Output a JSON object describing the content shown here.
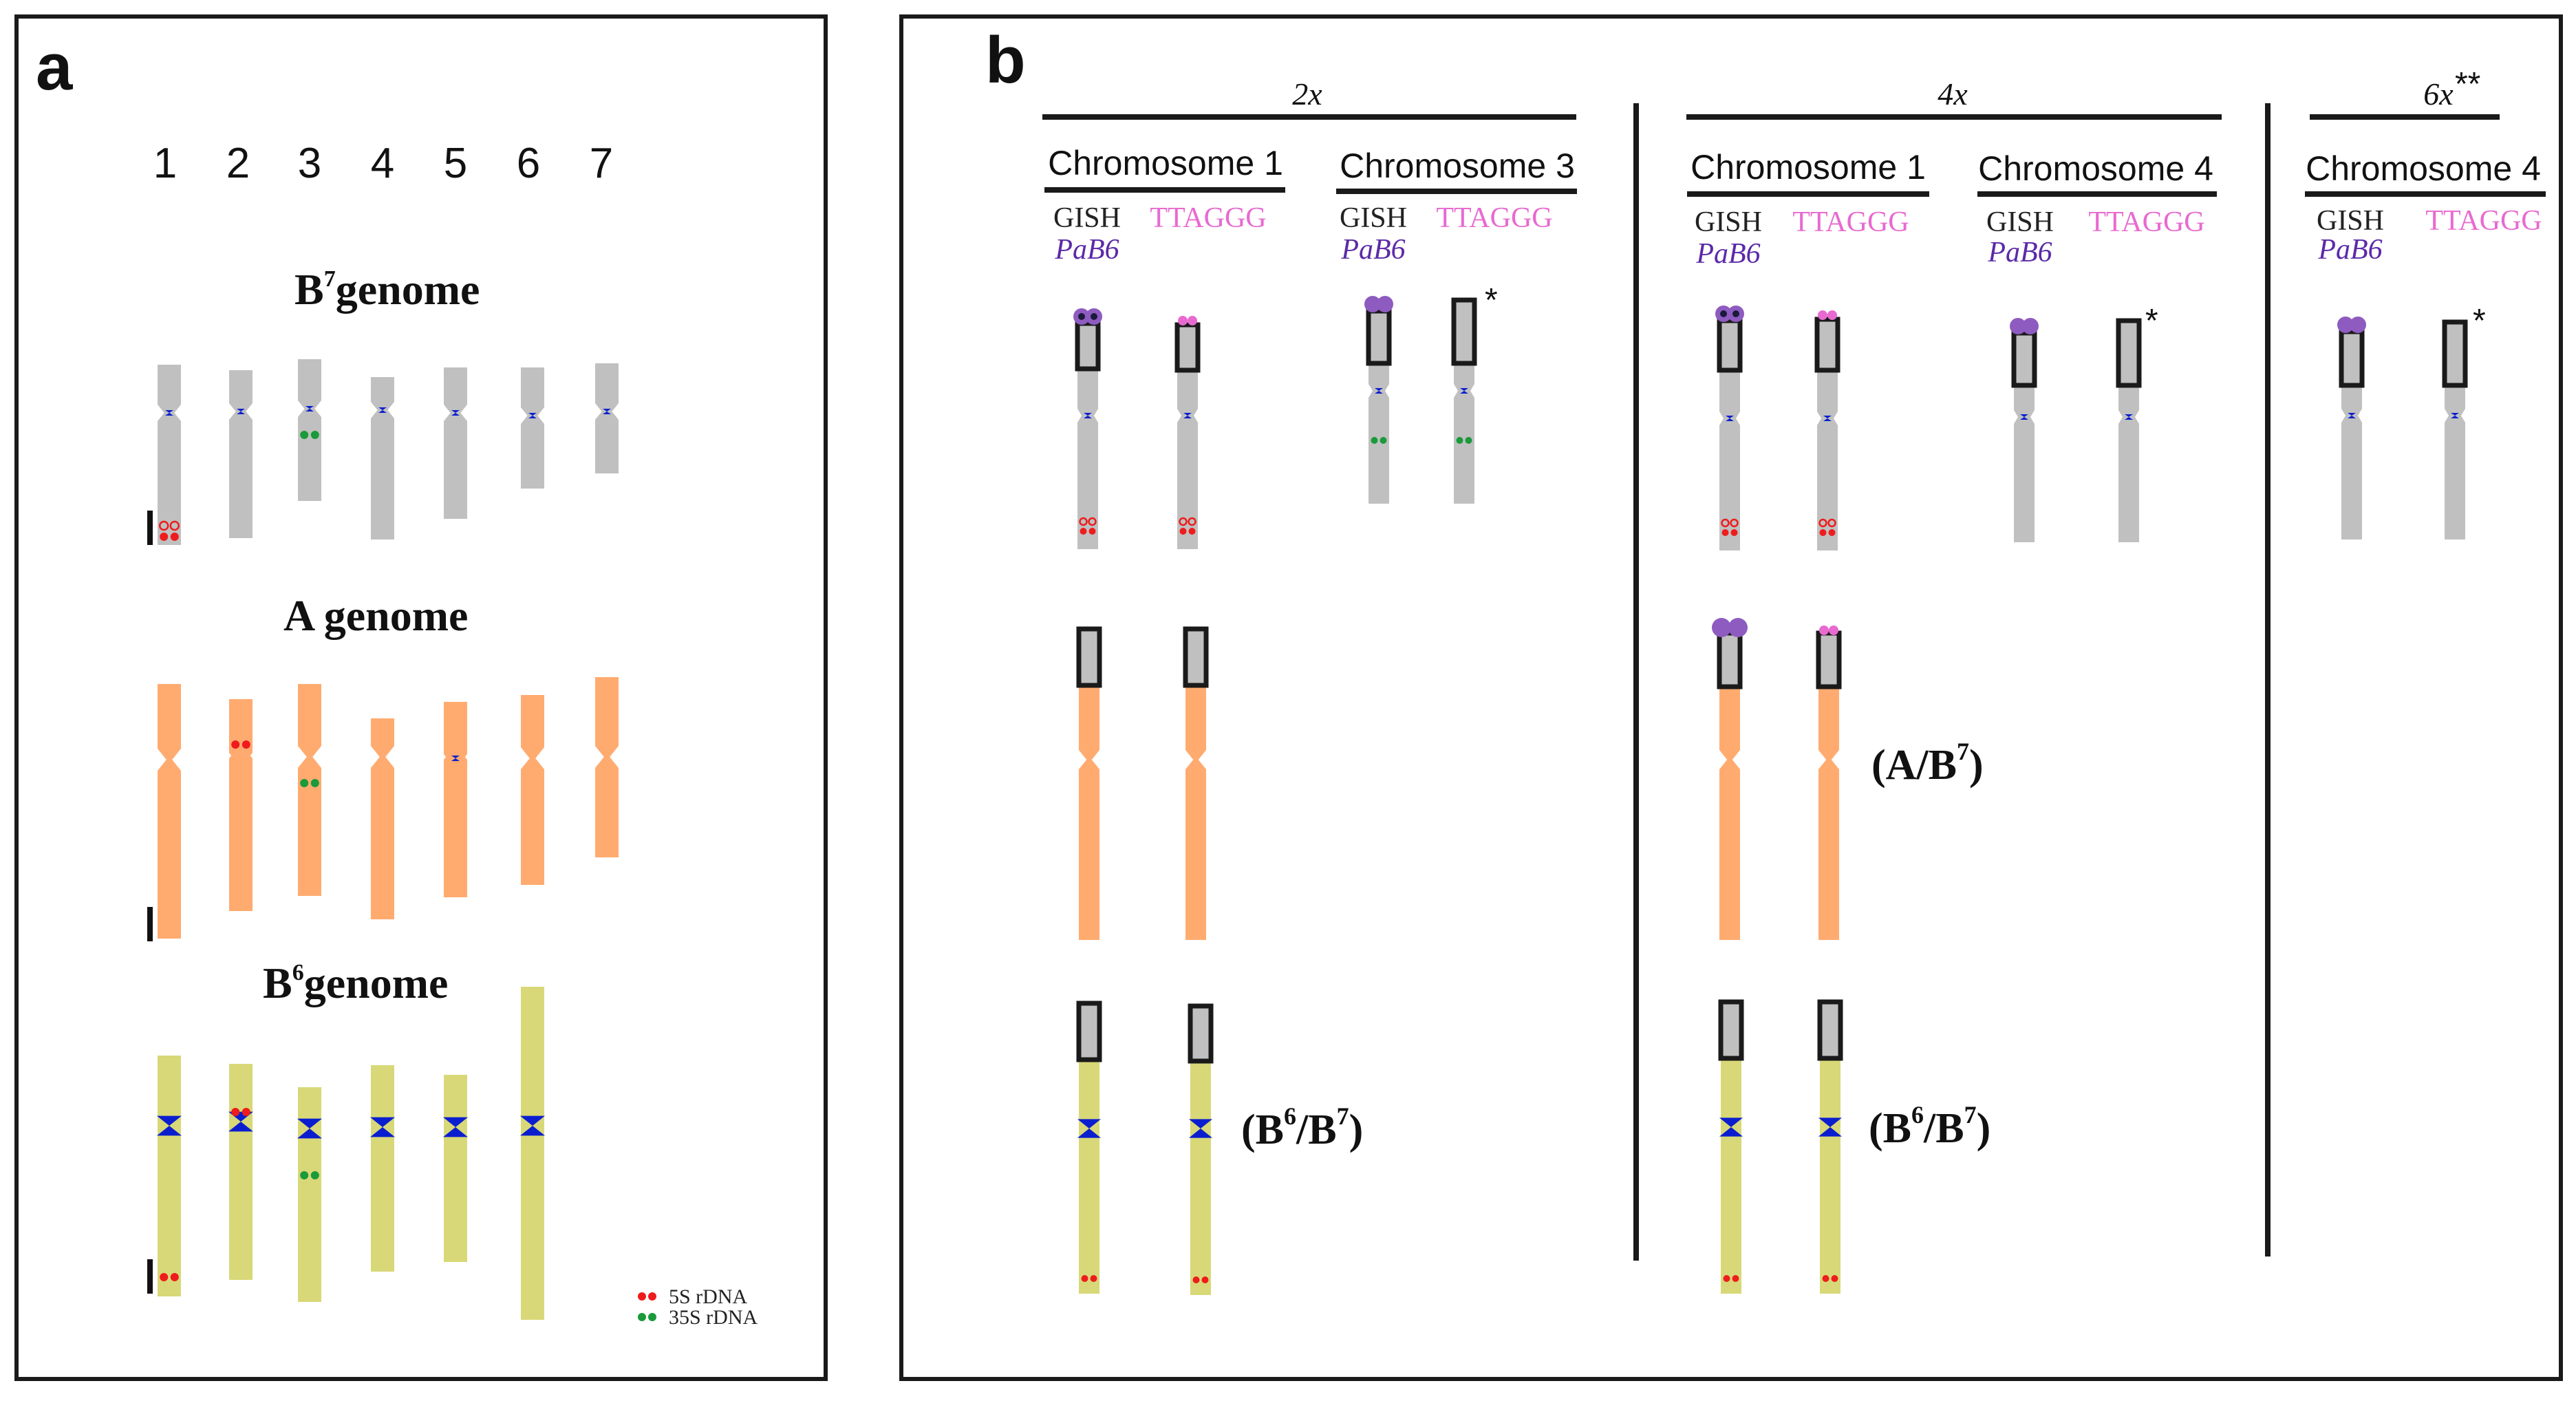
{
  "colors": {
    "b7": "#c0c0c0",
    "a": "#ffab70",
    "b6": "#d8d878",
    "centromere": "#0a1ecf",
    "rdna_5s": "#ee1c1c",
    "rdna_35s": "#1a9a3a",
    "gish": "#8e5bc0",
    "ttaggg": "#e86ad0",
    "frame": "#1a1a1a"
  },
  "panel_a": {
    "letter": "a",
    "chromosome_numbers": [
      "1",
      "2",
      "3",
      "4",
      "5",
      "6",
      "7"
    ],
    "genomes": [
      {
        "id": "b7",
        "label_prefix": "B",
        "label_sup": "7",
        "label_suffix": "genome"
      },
      {
        "id": "a",
        "label_prefix": "A genome",
        "label_sup": "",
        "label_suffix": ""
      },
      {
        "id": "b6",
        "label_prefix": "B",
        "label_sup": "6",
        "label_suffix": "genome"
      }
    ],
    "legend": [
      {
        "icon": "red-dot-pair",
        "label": "5S rDNA"
      },
      {
        "icon": "green-dot-pair",
        "label": "35S rDNA"
      }
    ]
  },
  "panel_b": {
    "letter": "b",
    "ploidy_groups": [
      {
        "label": "2x",
        "extra": ""
      },
      {
        "label": "4x",
        "extra": ""
      },
      {
        "label": "6x",
        "extra": "**"
      }
    ],
    "columns": [
      {
        "title": "Chromosome 1",
        "gish": "GISH",
        "probe": "PaB6",
        "ttaggg": "TTAGGG"
      },
      {
        "title": "Chromosome 3",
        "gish": "GISH",
        "probe": "PaB6",
        "ttaggg": "TTAGGG"
      },
      {
        "title": "Chromosome 1",
        "gish": "GISH",
        "probe": "PaB6",
        "ttaggg": "TTAGGG"
      },
      {
        "title": "Chromosome 4",
        "gish": "GISH",
        "probe": "PaB6",
        "ttaggg": "TTAGGG"
      },
      {
        "title": "Chromosome 4",
        "gish": "GISH",
        "probe": "PaB6",
        "ttaggg": "TTAGGG"
      }
    ],
    "asterisk": "*",
    "labels": {
      "a_b7": {
        "open": "(A/B",
        "sup": "7",
        "close": ")"
      },
      "b6_b7": {
        "open": "(B",
        "sup1": "6",
        "mid": "/B",
        "sup2": "7",
        "close": ")"
      }
    }
  }
}
